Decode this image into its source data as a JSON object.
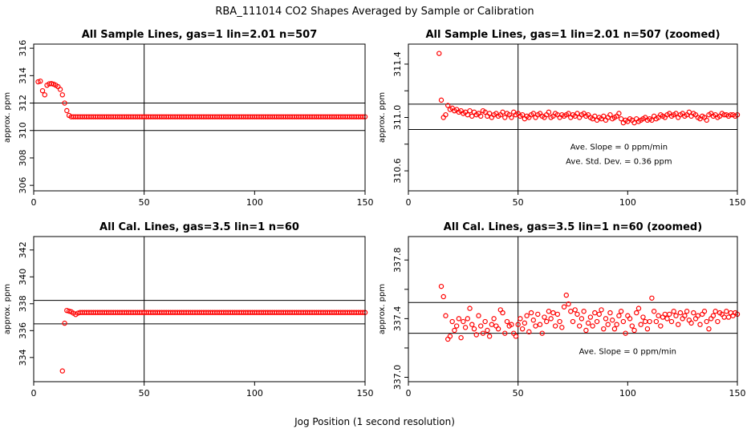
{
  "title": "RBA_111014  CO2 Shapes Averaged by Sample or Calibration",
  "xlabel": "Jog Position (1 second resolution)",
  "colors": {
    "points": "#ff0000",
    "lines": "#000000"
  },
  "chart_data": [
    {
      "type": "scatter",
      "title": "All Sample Lines, gas=1 lin=2.01 n=507",
      "ylabel": "approx. ppm",
      "xlim": [
        0,
        150
      ],
      "ylim": [
        305.6,
        316.3
      ],
      "xticks": [
        0,
        50,
        100,
        150
      ],
      "yticks": [
        306,
        308,
        310,
        312,
        314,
        316
      ],
      "hlines": [
        310,
        312
      ],
      "vlines": [
        50
      ],
      "annotations": [],
      "series": [
        {
          "x": [
            2,
            3,
            4,
            5,
            6,
            7,
            8,
            9,
            10,
            11,
            12,
            13,
            14,
            15,
            16,
            17
          ],
          "y": [
            313.55,
            313.6,
            312.9,
            312.6,
            313.3,
            313.4,
            313.42,
            313.38,
            313.3,
            313.2,
            313.0,
            312.6,
            312.0,
            311.45,
            311.1,
            311.0
          ],
          "trail": {
            "from": 18,
            "to": 150,
            "y": 311.0
          }
        }
      ]
    },
    {
      "type": "scatter",
      "title": "All Sample Lines, gas=1 lin=2.01 n=507 (zoomed)",
      "ylabel": "approx. ppm",
      "xlim": [
        0,
        150
      ],
      "ylim": [
        310.45,
        311.55
      ],
      "xticks": [
        0,
        50,
        100,
        150
      ],
      "yticks": [
        310.6,
        311.0,
        311.4
      ],
      "yticks_minor": [
        310.8,
        311.2
      ],
      "hlines": [
        310.91,
        311.1
      ],
      "vlines": [
        50
      ],
      "annotations": [
        {
          "text": "Ave. Slope =  0  ppm/min",
          "x": 96,
          "y": 310.76
        },
        {
          "text": "Ave. Std. Dev. =  0.36  ppm",
          "x": 96,
          "y": 310.65
        }
      ],
      "series": [
        {
          "x": [
            14,
            15,
            16,
            17,
            18,
            19,
            20,
            21,
            22,
            23,
            24,
            25,
            26,
            27,
            28,
            29,
            30,
            31,
            32,
            33,
            34,
            35,
            36,
            37,
            38,
            39,
            40,
            41,
            42,
            43,
            44,
            45,
            46,
            47,
            48,
            49,
            50,
            51,
            52,
            53,
            54,
            55,
            56,
            57,
            58,
            59,
            60,
            61,
            62,
            63,
            64,
            65,
            66,
            67,
            68,
            69,
            70,
            71,
            72,
            73,
            74,
            75,
            76,
            77,
            78,
            79,
            80,
            81,
            82,
            83,
            84,
            85,
            86,
            87,
            88,
            89,
            90,
            91,
            92,
            93,
            94,
            95,
            96,
            97,
            98,
            99,
            100,
            101,
            102,
            103,
            104,
            105,
            106,
            107,
            108,
            109,
            110,
            111,
            112,
            113,
            114,
            115,
            116,
            117,
            118,
            119,
            120,
            121,
            122,
            123,
            124,
            125,
            126,
            127,
            128,
            129,
            130,
            131,
            132,
            133,
            134,
            135,
            136,
            137,
            138,
            139,
            140,
            141,
            142,
            143,
            144,
            145,
            146,
            147,
            148,
            149,
            150
          ],
          "y": [
            311.48,
            311.13,
            311.0,
            311.02,
            311.09,
            311.06,
            311.07,
            311.05,
            311.06,
            311.04,
            311.05,
            311.03,
            311.04,
            311.02,
            311.05,
            311.01,
            311.04,
            311.02,
            311.03,
            311.01,
            311.05,
            311.04,
            311.01,
            311.03,
            311.0,
            311.02,
            311.03,
            311.01,
            311.02,
            311.04,
            311.0,
            311.03,
            311.02,
            311.0,
            311.04,
            311.02,
            311.03,
            311.01,
            311.02,
            310.99,
            311.01,
            311.0,
            311.02,
            311.03,
            311.0,
            311.02,
            311.03,
            311.01,
            311.0,
            311.02,
            311.04,
            311.0,
            311.01,
            311.03,
            311.02,
            311.0,
            311.02,
            311.01,
            311.02,
            311.03,
            311.0,
            311.02,
            311.01,
            311.03,
            311.0,
            311.02,
            311.03,
            311.01,
            311.02,
            311.0,
            310.99,
            311.01,
            310.98,
            311.0,
            310.99,
            311.01,
            310.98,
            311.0,
            311.02,
            310.99,
            311.0,
            311.01,
            311.03,
            310.99,
            310.96,
            310.98,
            310.97,
            310.99,
            310.98,
            310.96,
            310.99,
            310.97,
            310.98,
            310.99,
            311.0,
            310.98,
            310.99,
            310.98,
            311.01,
            310.99,
            311.0,
            311.02,
            311.01,
            311.0,
            311.02,
            311.03,
            311.01,
            311.02,
            311.03,
            311.0,
            311.02,
            311.03,
            311.01,
            311.02,
            311.04,
            311.01,
            311.03,
            311.02,
            311.0,
            310.99,
            311.01,
            311.0,
            310.98,
            311.02,
            311.03,
            311.01,
            311.02,
            311.0,
            311.01,
            311.03,
            311.02,
            311.02,
            311.01,
            311.02,
            311.02,
            311.01,
            311.02
          ]
        }
      ]
    },
    {
      "type": "scatter",
      "title": "All Cal. Lines, gas=3.5 lin=1 n=60",
      "ylabel": "approx. ppm",
      "xlim": [
        0,
        150
      ],
      "ylim": [
        332.2,
        343.0
      ],
      "xticks": [
        0,
        50,
        100,
        150
      ],
      "yticks": [
        334,
        336,
        338,
        340,
        342
      ],
      "hlines": [
        336.5,
        338.25
      ],
      "vlines": [
        50
      ],
      "annotations": [],
      "series": [
        {
          "x": [
            13,
            14,
            15,
            16,
            17,
            18,
            19,
            20
          ],
          "y": [
            333.0,
            336.55,
            337.5,
            337.45,
            337.4,
            337.3,
            337.2,
            337.3
          ],
          "trail": {
            "from": 21,
            "to": 150,
            "y": 337.35
          }
        }
      ]
    },
    {
      "type": "scatter",
      "title": "All Cal. Lines, gas=3.5 lin=1 n=60 (zoomed)",
      "ylabel": "approx. ppm",
      "xlim": [
        0,
        150
      ],
      "ylim": [
        336.97,
        337.96
      ],
      "xticks": [
        0,
        50,
        100,
        150
      ],
      "yticks": [
        337.0,
        337.4,
        337.8
      ],
      "yticks_minor": [
        337.2,
        337.6
      ],
      "hlines": [
        337.3,
        337.51
      ],
      "vlines": [
        50
      ],
      "annotations": [
        {
          "text": "Ave. Slope =  0  ppm/min",
          "x": 100,
          "y": 337.16
        }
      ],
      "series": [
        {
          "x": [
            15,
            16,
            17,
            18,
            19,
            20,
            21,
            22,
            23,
            24,
            25,
            26,
            27,
            28,
            29,
            30,
            31,
            32,
            33,
            34,
            35,
            36,
            37,
            38,
            39,
            40,
            41,
            42,
            43,
            44,
            45,
            46,
            47,
            48,
            49,
            50,
            51,
            52,
            53,
            54,
            55,
            56,
            57,
            58,
            59,
            60,
            61,
            62,
            63,
            64,
            65,
            66,
            67,
            68,
            69,
            70,
            71,
            72,
            73,
            74,
            75,
            76,
            77,
            78,
            79,
            80,
            81,
            82,
            83,
            84,
            85,
            86,
            87,
            88,
            89,
            90,
            91,
            92,
            93,
            94,
            95,
            96,
            97,
            98,
            99,
            100,
            101,
            102,
            103,
            104,
            105,
            106,
            107,
            108,
            109,
            110,
            111,
            112,
            113,
            114,
            115,
            116,
            117,
            118,
            119,
            120,
            121,
            122,
            123,
            124,
            125,
            126,
            127,
            128,
            129,
            130,
            131,
            132,
            133,
            134,
            135,
            136,
            137,
            138,
            139,
            140,
            141,
            142,
            143,
            144,
            145,
            146,
            147,
            148,
            149,
            150
          ],
          "y": [
            337.62,
            337.55,
            337.42,
            337.26,
            337.28,
            337.38,
            337.32,
            337.35,
            337.4,
            337.27,
            337.38,
            337.34,
            337.4,
            337.47,
            337.36,
            337.33,
            337.29,
            337.42,
            337.35,
            337.3,
            337.38,
            337.32,
            337.28,
            337.36,
            337.4,
            337.35,
            337.33,
            337.46,
            337.44,
            337.3,
            337.38,
            337.35,
            337.36,
            337.3,
            337.28,
            337.36,
            337.4,
            337.33,
            337.37,
            337.42,
            337.31,
            337.44,
            337.39,
            337.35,
            337.43,
            337.36,
            337.3,
            337.41,
            337.38,
            337.45,
            337.4,
            337.44,
            337.35,
            337.43,
            337.38,
            337.34,
            337.48,
            337.56,
            337.5,
            337.45,
            337.38,
            337.46,
            337.43,
            337.35,
            337.4,
            337.45,
            337.32,
            337.37,
            337.41,
            337.35,
            337.44,
            337.38,
            337.43,
            337.46,
            337.33,
            337.4,
            337.36,
            337.44,
            337.39,
            337.33,
            337.36,
            337.42,
            337.45,
            337.38,
            337.3,
            337.42,
            337.4,
            337.35,
            337.32,
            337.44,
            337.47,
            337.36,
            337.41,
            337.38,
            337.33,
            337.38,
            337.54,
            337.45,
            337.38,
            337.42,
            337.35,
            337.41,
            337.43,
            337.4,
            337.43,
            337.38,
            337.45,
            337.42,
            337.36,
            337.44,
            337.4,
            337.42,
            337.45,
            337.39,
            337.37,
            337.44,
            337.4,
            337.42,
            337.36,
            337.43,
            337.45,
            337.38,
            337.33,
            337.4,
            337.42,
            337.45,
            337.38,
            337.44,
            337.43,
            337.41,
            337.45,
            337.41,
            337.44,
            337.42,
            337.44,
            337.43
          ]
        }
      ]
    }
  ]
}
